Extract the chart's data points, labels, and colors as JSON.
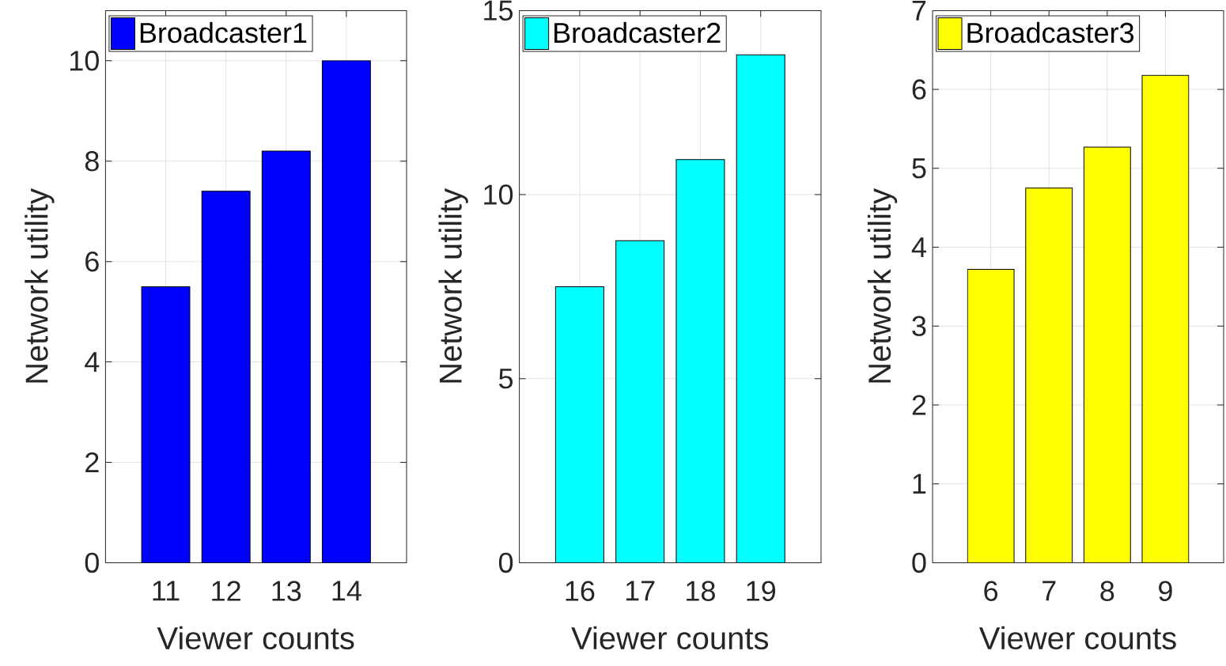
{
  "chart_data": [
    {
      "type": "bar",
      "categories": [
        "11",
        "12",
        "13",
        "14"
      ],
      "series": [
        {
          "name": "Broadcaster1",
          "color": "#0000ff",
          "values": [
            5.5,
            7.4,
            8.2,
            10.0
          ]
        }
      ],
      "xlabel": "Viewer counts",
      "ylabel": "Network utility",
      "ylim": [
        0,
        11
      ],
      "yticks": [
        0,
        2,
        4,
        6,
        8,
        10
      ],
      "grid": true,
      "legend": "top left"
    },
    {
      "type": "bar",
      "categories": [
        "16",
        "17",
        "18",
        "19"
      ],
      "series": [
        {
          "name": "Broadcaster2",
          "color": "#00ffff",
          "values": [
            7.5,
            8.75,
            10.95,
            13.8
          ]
        }
      ],
      "xlabel": "Viewer counts",
      "ylabel": "Network utility",
      "ylim": [
        0,
        15
      ],
      "yticks": [
        0,
        5,
        10,
        15
      ],
      "grid": true,
      "legend": "top left"
    },
    {
      "type": "bar",
      "categories": [
        "6",
        "7",
        "8",
        "9"
      ],
      "series": [
        {
          "name": "Broadcaster3",
          "color": "#ffff00",
          "values": [
            3.72,
            4.75,
            5.27,
            6.18
          ]
        }
      ],
      "xlabel": "Viewer counts",
      "ylabel": "Network utility",
      "ylim": [
        0,
        7
      ],
      "yticks": [
        0,
        1,
        2,
        3,
        4,
        5,
        6,
        7
      ],
      "grid": true,
      "legend": "top left"
    }
  ]
}
